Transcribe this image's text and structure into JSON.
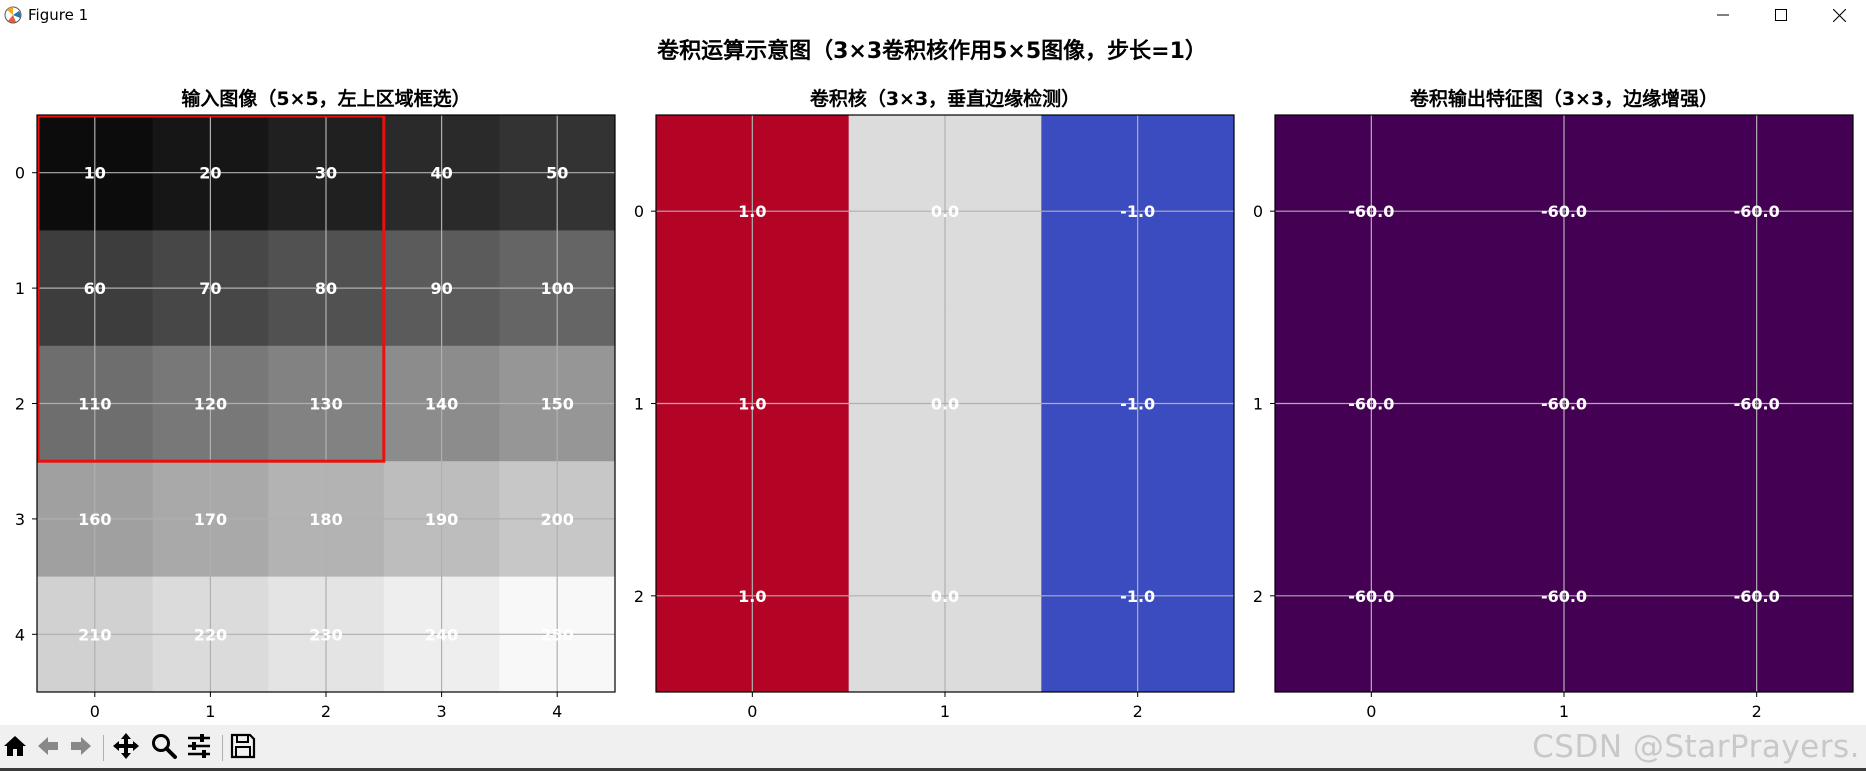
{
  "window": {
    "title": "Figure 1",
    "icon": "matplotlib-icon",
    "controls": [
      "minimize-icon",
      "maximize-icon",
      "close-icon"
    ]
  },
  "toolbar": {
    "buttons": [
      "home-icon",
      "back-icon",
      "forward-icon",
      "pan-icon",
      "zoom-icon",
      "configure-subplots-icon",
      "save-icon"
    ],
    "watermark": "CSDN @StarPrayers."
  },
  "figure": {
    "suptitle": "卷积运算示意图（3×3卷积核作用5×5图像，步长=1）"
  },
  "chart_data": [
    {
      "type": "heatmap",
      "title": "输入图像（5×5，左上区域框选）",
      "colormap": "gray",
      "vmin": 10,
      "vmax": 250,
      "x_ticks": [
        "0",
        "1",
        "2",
        "3",
        "4"
      ],
      "y_ticks": [
        "0",
        "1",
        "2",
        "3",
        "4"
      ],
      "grid": true,
      "values": [
        [
          10,
          20,
          30,
          40,
          50
        ],
        [
          60,
          70,
          80,
          90,
          100
        ],
        [
          110,
          120,
          130,
          140,
          150
        ],
        [
          160,
          170,
          180,
          190,
          200
        ],
        [
          210,
          220,
          230,
          240,
          250
        ]
      ],
      "labels": [
        [
          "10",
          "20",
          "30",
          "40",
          "50"
        ],
        [
          "60",
          "70",
          "80",
          "90",
          "100"
        ],
        [
          "110",
          "120",
          "130",
          "140",
          "150"
        ],
        [
          "160",
          "170",
          "180",
          "190",
          "200"
        ],
        [
          "210",
          "220",
          "230",
          "240",
          "250"
        ]
      ],
      "highlight": {
        "rows": [
          0,
          2
        ],
        "cols": [
          0,
          2
        ],
        "color": "#e8120c"
      }
    },
    {
      "type": "heatmap",
      "title": "卷积核（3×3，垂直边缘检测）",
      "colormap": "coolwarm",
      "vmin": -1.0,
      "vmax": 1.0,
      "x_ticks": [
        "0",
        "1",
        "2"
      ],
      "y_ticks": [
        "0",
        "1",
        "2"
      ],
      "grid": true,
      "values": [
        [
          1.0,
          0.0,
          -1.0
        ],
        [
          1.0,
          0.0,
          -1.0
        ],
        [
          1.0,
          0.0,
          -1.0
        ]
      ],
      "labels": [
        [
          "1.0",
          "0.0",
          "-1.0"
        ],
        [
          "1.0",
          "0.0",
          "-1.0"
        ],
        [
          "1.0",
          "0.0",
          "-1.0"
        ]
      ],
      "cell_colors": {
        "1.0": "#b40426",
        "0.0": "#dddcdc",
        "-1.0": "#3b4cc0"
      }
    },
    {
      "type": "heatmap",
      "title": "卷积输出特征图（3×3，边缘增强）",
      "colormap": "viridis",
      "x_ticks": [
        "0",
        "1",
        "2"
      ],
      "y_ticks": [
        "0",
        "1",
        "2"
      ],
      "grid": true,
      "values": [
        [
          -60.0,
          -60.0,
          -60.0
        ],
        [
          -60.0,
          -60.0,
          -60.0
        ],
        [
          -60.0,
          -60.0,
          -60.0
        ]
      ],
      "labels": [
        [
          "-60.0",
          "-60.0",
          "-60.0"
        ],
        [
          "-60.0",
          "-60.0",
          "-60.0"
        ],
        [
          "-60.0",
          "-60.0",
          "-60.0"
        ]
      ],
      "cell_color": "#440154"
    }
  ]
}
